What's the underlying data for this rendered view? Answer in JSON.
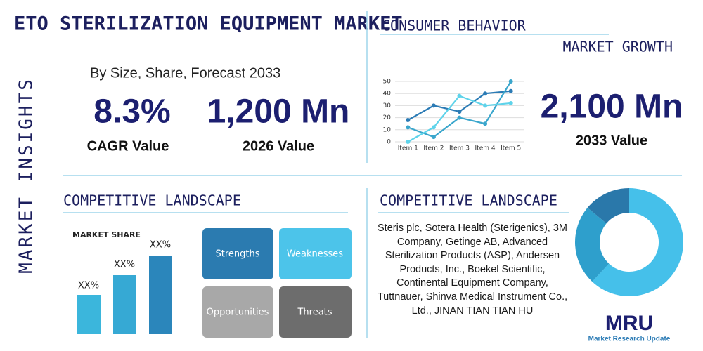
{
  "title": "ETO STERILIZATION EQUIPMENT MARKET",
  "side_label": "MARKET INSIGHTS",
  "subtitle": "By Size, Share, Forecast 2033",
  "stats": [
    {
      "value": "8.3%",
      "label": "CAGR Value"
    },
    {
      "value": "1,200 Mn",
      "label": "2026 Value"
    },
    {
      "value": "2,100 Mn",
      "label": "2033 Value"
    }
  ],
  "consumer_heading": "CONSUMER BEHAVIOR",
  "growth_heading": "MARKET GROWTH",
  "landscape_left": {
    "heading": "COMPETITIVE LANDSCAPE",
    "share_title": "MARKET SHARE",
    "bar_labels": [
      "XX%",
      "XX%",
      "XX%"
    ],
    "swot": [
      "Strengths",
      "Weaknesses",
      "Opportunities",
      "Threats"
    ]
  },
  "landscape_right": {
    "heading": "COMPETITIVE LANDSCAPE",
    "text": "Steris plc, Sotera Health (Sterigenics), 3M Company, Getinge AB, Advanced Sterilization Products (ASP), Andersen Products, Inc., Boekel Scientific, Continental Equipment Company, Tuttnauer, Shinva Medical Instrument Co., Ltd., JINAN TIAN TIAN HU"
  },
  "logo": {
    "mark": "MRU",
    "name": "Market Research Update"
  },
  "chart_data": [
    {
      "type": "line",
      "categories": [
        "Item 1",
        "Item 2",
        "Item 3",
        "Item 4",
        "Item 5"
      ],
      "series": [
        {
          "color": "#2b7bb5",
          "values": [
            18,
            30,
            25,
            40,
            42
          ]
        },
        {
          "color": "#3aa6cc",
          "values": [
            12,
            4,
            20,
            15,
            50
          ]
        },
        {
          "color": "#5ed3ea",
          "values": [
            0,
            12,
            38,
            30,
            32
          ]
        }
      ],
      "ylim": [
        0,
        50
      ],
      "yticks": [
        0,
        10,
        20,
        30,
        40,
        50
      ],
      "grid": true
    },
    {
      "type": "donut",
      "values": [
        62,
        24,
        14
      ],
      "colors": [
        "#45c0ea",
        "#2e9fcc",
        "#2a78aa"
      ]
    }
  ]
}
